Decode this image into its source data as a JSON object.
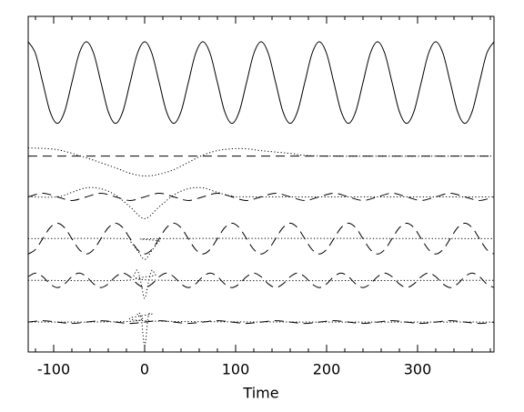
{
  "chart_data": {
    "type": "line",
    "x_label": "Time",
    "xlim": [
      -128,
      384
    ],
    "xticks": [
      -100,
      0,
      100,
      200,
      300
    ],
    "xminorticks": [
      -120,
      -80,
      -60,
      -40,
      -20,
      20,
      40,
      60,
      80,
      120,
      140,
      160,
      180,
      220,
      240,
      260,
      280,
      320,
      340,
      360,
      380
    ],
    "ylim": [
      0,
      37
    ],
    "series": [
      {
        "color": "#000000",
        "style": "solid",
        "x": [
          -128,
          -120,
          -112,
          -104,
          -96,
          -88,
          -80,
          -72,
          -64,
          -56,
          -48,
          -40,
          -32,
          -24,
          -16,
          -8,
          0,
          8,
          16,
          24,
          32,
          40,
          48,
          56,
          64,
          72,
          80,
          88,
          96,
          104,
          112,
          120,
          128,
          136,
          144,
          152,
          160,
          168,
          176,
          184,
          192,
          200,
          208,
          216,
          224,
          232,
          240,
          248,
          256,
          264,
          272,
          280,
          288,
          296,
          304,
          312,
          320,
          328,
          336,
          344,
          352,
          360,
          368,
          376,
          384
        ],
        "values": [
          34.2,
          32.9,
          29.7,
          26.5,
          25.2,
          26.5,
          29.7,
          32.9,
          34.2,
          32.9,
          29.7,
          26.5,
          25.2,
          26.5,
          29.7,
          32.9,
          34.2,
          32.9,
          29.7,
          26.5,
          25.2,
          26.5,
          29.7,
          32.9,
          34.2,
          32.9,
          29.7,
          26.5,
          25.2,
          26.5,
          29.7,
          32.9,
          34.2,
          32.9,
          29.7,
          26.5,
          25.2,
          26.5,
          29.7,
          32.9,
          34.2,
          32.9,
          29.7,
          26.5,
          25.2,
          26.5,
          29.7,
          32.9,
          34.2,
          32.9,
          29.7,
          26.5,
          25.2,
          26.5,
          29.7,
          32.9,
          34.2,
          32.9,
          29.7,
          26.5,
          25.2,
          26.5,
          29.7,
          32.9,
          34.2
        ]
      },
      {
        "color": "#000000",
        "style": "dashed",
        "x": [
          -128,
          384
        ],
        "values": [
          21.6,
          21.6
        ]
      },
      {
        "color": "#000000",
        "style": "dotted",
        "x": [
          -128,
          -96,
          -64,
          -32,
          -16,
          0,
          16,
          32,
          48,
          64,
          80,
          96,
          112,
          128,
          160,
          200,
          384
        ],
        "values": [
          22.5,
          22.3,
          21.4,
          20.3,
          19.7,
          19.4,
          19.6,
          20.1,
          20.9,
          21.7,
          22.2,
          22.4,
          22.4,
          22.2,
          21.9,
          21.6,
          21.6
        ]
      },
      {
        "color": "#000000",
        "style": "dashed",
        "x": [
          -128,
          -112,
          -96,
          -80,
          -64,
          -48,
          -32,
          -16,
          0,
          16,
          32,
          48,
          64,
          80,
          96,
          112,
          128,
          144,
          160,
          176,
          192,
          208,
          224,
          240,
          256,
          272,
          288,
          304,
          320,
          336,
          352,
          368,
          384
        ],
        "values": [
          17.1,
          17.5,
          17.1,
          16.7,
          17.1,
          17.5,
          17.1,
          16.7,
          17.1,
          17.5,
          17.1,
          16.7,
          17.1,
          17.5,
          17.1,
          16.7,
          17.1,
          17.5,
          17.1,
          16.7,
          17.1,
          17.5,
          17.1,
          16.7,
          17.1,
          17.5,
          17.1,
          16.7,
          17.1,
          17.5,
          17.1,
          16.7,
          17.1
        ]
      },
      {
        "color": "#000000",
        "style": "dotted",
        "x": [
          -128,
          -96,
          -80,
          -64,
          -48,
          -32,
          -16,
          0,
          16,
          32,
          48,
          64,
          80,
          96,
          128,
          384
        ],
        "values": [
          17.1,
          17.1,
          17.6,
          18.1,
          18.0,
          17.3,
          16.0,
          14.7,
          16.0,
          17.3,
          18.0,
          18.1,
          17.6,
          17.2,
          17.1,
          17.1
        ]
      },
      {
        "color": "#000000",
        "style": "dotted",
        "x": [
          -128,
          -24,
          -16,
          -8,
          0,
          8,
          16,
          24,
          384
        ],
        "values": [
          12.5,
          12.5,
          12.2,
          11.2,
          10.2,
          11.2,
          12.2,
          12.5,
          12.5
        ]
      },
      {
        "color": "#000000",
        "style": "dashed",
        "x": [
          -128,
          -120,
          -112,
          -104,
          -96,
          -88,
          -80,
          -72,
          -64,
          -56,
          -48,
          -40,
          -32,
          -24,
          -16,
          -8,
          0,
          8,
          16,
          24,
          32,
          40,
          48,
          56,
          64,
          72,
          80,
          88,
          96,
          104,
          112,
          120,
          128,
          136,
          144,
          152,
          160,
          168,
          176,
          184,
          192,
          200,
          208,
          216,
          224,
          232,
          240,
          248,
          256,
          264,
          272,
          280,
          288,
          296,
          304,
          312,
          320,
          328,
          336,
          344,
          352,
          360,
          368,
          376,
          384
        ],
        "values": [
          10.8,
          11.3,
          12.5,
          13.7,
          14.2,
          13.7,
          12.5,
          11.3,
          10.8,
          11.3,
          12.5,
          13.7,
          14.2,
          13.7,
          12.5,
          11.3,
          10.8,
          11.3,
          12.5,
          13.7,
          14.2,
          13.7,
          12.5,
          11.3,
          10.8,
          11.3,
          12.5,
          13.7,
          14.2,
          13.7,
          12.5,
          11.3,
          10.8,
          11.3,
          12.5,
          13.7,
          14.2,
          13.7,
          12.5,
          11.3,
          10.8,
          11.3,
          12.5,
          13.7,
          14.2,
          13.7,
          12.5,
          11.3,
          10.8,
          11.3,
          12.5,
          13.7,
          14.2,
          13.7,
          12.5,
          11.3,
          10.8,
          11.3,
          12.5,
          13.7,
          14.2,
          13.7,
          12.5,
          11.3,
          10.8
        ]
      },
      {
        "color": "#000000",
        "style": "dotted",
        "x": [
          -128,
          -20,
          -12,
          -8,
          -4,
          0,
          4,
          8,
          12,
          20,
          384
        ],
        "values": [
          7.9,
          7.9,
          8.5,
          9.0,
          7.6,
          5.9,
          7.6,
          9.0,
          8.5,
          7.9,
          7.9
        ]
      },
      {
        "color": "#000000",
        "style": "dashed",
        "x": [
          -128,
          -120,
          -112,
          -104,
          -96,
          -88,
          -80,
          -72,
          -64,
          -56,
          -48,
          -40,
          -32,
          -24,
          -16,
          -8,
          0,
          8,
          16,
          24,
          32,
          40,
          48,
          56,
          64,
          72,
          80,
          88,
          96,
          104,
          112,
          120,
          128,
          136,
          144,
          152,
          160,
          168,
          176,
          184,
          192,
          200,
          208,
          216,
          224,
          232,
          240,
          248,
          256,
          264,
          272,
          280,
          288,
          296,
          304,
          312,
          320,
          328,
          336,
          344,
          352,
          360,
          368,
          376,
          384
        ],
        "values": [
          8.3,
          8.7,
          8.3,
          7.5,
          7.1,
          7.5,
          8.3,
          8.7,
          8.3,
          7.5,
          7.1,
          7.5,
          8.3,
          8.7,
          8.3,
          7.5,
          7.1,
          7.5,
          8.3,
          8.7,
          8.3,
          7.5,
          7.1,
          7.5,
          8.3,
          8.7,
          8.3,
          7.5,
          7.1,
          7.5,
          8.3,
          8.7,
          8.3,
          7.5,
          7.1,
          7.5,
          8.3,
          8.7,
          8.3,
          7.5,
          7.1,
          7.5,
          8.3,
          8.7,
          8.3,
          7.5,
          7.1,
          7.5,
          8.3,
          8.7,
          8.3,
          7.5,
          7.1,
          7.5,
          8.3,
          8.7,
          8.3,
          7.5,
          7.1,
          7.5,
          8.3,
          8.7,
          8.3,
          7.5,
          7.1
        ]
      },
      {
        "color": "#000000",
        "style": "dashed",
        "x": [
          -128,
          -112,
          -96,
          -80,
          -64,
          -48,
          -32,
          -16,
          0,
          16,
          32,
          48,
          64,
          80,
          96,
          112,
          128,
          144,
          160,
          176,
          192,
          208,
          224,
          240,
          256,
          272,
          288,
          304,
          320,
          336,
          352,
          368,
          384
        ],
        "values": [
          3.3,
          3.45,
          3.3,
          3.15,
          3.3,
          3.45,
          3.3,
          3.15,
          3.3,
          3.45,
          3.3,
          3.15,
          3.3,
          3.45,
          3.3,
          3.15,
          3.3,
          3.45,
          3.3,
          3.15,
          3.3,
          3.45,
          3.3,
          3.15,
          3.3,
          3.45,
          3.3,
          3.15,
          3.3,
          3.45,
          3.3,
          3.15,
          3.3
        ]
      },
      {
        "color": "#000000",
        "style": "dotted",
        "x": [
          -128,
          -12,
          -8,
          -4,
          0,
          4,
          8,
          12,
          384
        ],
        "values": [
          3.3,
          3.4,
          4.2,
          3.9,
          0.7,
          3.9,
          4.2,
          3.4,
          3.3
        ]
      }
    ]
  }
}
